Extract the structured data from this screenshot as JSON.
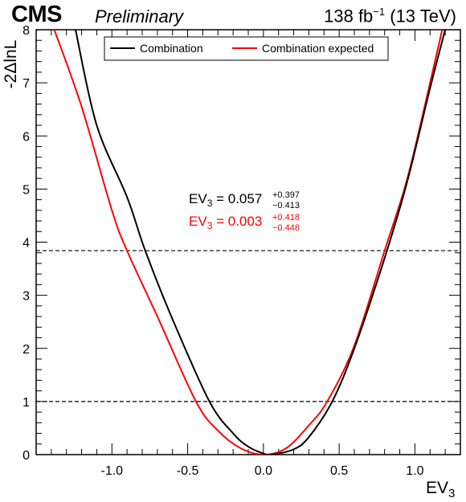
{
  "header": {
    "experiment": "CMS",
    "status": "Preliminary",
    "lumi_value": "138 fb",
    "lumi_exp": "−1",
    "energy": "(13 TeV)"
  },
  "chart_data": {
    "type": "line",
    "xlabel_main": "EV",
    "xlabel_sub": "3",
    "ylabel": "-2ΔlnL",
    "xlim": [
      -1.5,
      1.3
    ],
    "ylim": [
      0,
      8
    ],
    "x_ticks": [
      "-1.0",
      "-0.5",
      "0.0",
      "0.5",
      "1.0"
    ],
    "x_tick_values": [
      -1.0,
      -0.5,
      0.0,
      0.5,
      1.0
    ],
    "y_ticks": [
      "0",
      "1",
      "2",
      "3",
      "4",
      "5",
      "6",
      "7",
      "8"
    ],
    "y_tick_values": [
      0,
      1,
      2,
      3,
      4,
      5,
      6,
      7,
      8
    ],
    "reference_lines": [
      1.0,
      3.84
    ],
    "legend_position": "top",
    "series": [
      {
        "name": "Combination",
        "color": "#000000",
        "best_fit": 0.057,
        "x": [
          -1.24,
          -1.1,
          -0.9,
          -0.78,
          -0.6,
          -0.356,
          -0.2,
          -0.1,
          0.0,
          0.057,
          0.2,
          0.3,
          0.454,
          0.6,
          0.8,
          0.95,
          1.1,
          1.2
        ],
        "y": [
          8.0,
          6.2,
          4.85,
          3.84,
          2.55,
          1.0,
          0.4,
          0.15,
          0.02,
          0.0,
          0.1,
          0.33,
          1.0,
          2.0,
          3.7,
          5.15,
          6.9,
          8.0
        ]
      },
      {
        "name": "Combination expected",
        "color": "#ff0000",
        "best_fit": 0.003,
        "x": [
          -1.38,
          -1.2,
          -1.0,
          -0.9,
          -0.7,
          -0.445,
          -0.3,
          -0.15,
          0.003,
          0.15,
          0.3,
          0.421,
          0.6,
          0.8,
          0.95,
          1.1,
          1.18
        ],
        "y": [
          8.0,
          6.55,
          4.6,
          3.84,
          2.6,
          1.0,
          0.45,
          0.12,
          0.0,
          0.12,
          0.55,
          1.0,
          2.05,
          3.84,
          5.2,
          7.0,
          8.0
        ]
      }
    ],
    "annotations": [
      {
        "color": "#000000",
        "var": "EV",
        "sub": "3",
        "text": " = 0.057",
        "up": "+0.397",
        "down": "−0.413"
      },
      {
        "color": "#ff0000",
        "var": "EV",
        "sub": "3",
        "text": " = 0.003",
        "up": "+0.418",
        "down": "−0.448"
      }
    ]
  }
}
